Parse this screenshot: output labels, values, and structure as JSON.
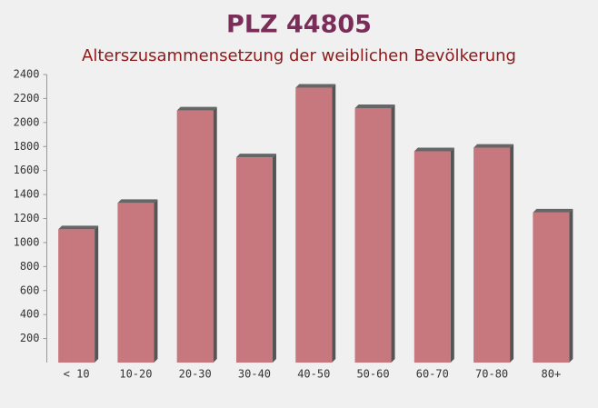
{
  "chart_data": {
    "type": "bar",
    "title": "PLZ 44805",
    "subtitle": "Alterszusammensetzung der weiblichen Bevölkerung",
    "categories": [
      "< 10",
      "10-20",
      "20-30",
      "30-40",
      "40-50",
      "50-60",
      "60-70",
      "70-80",
      "80+"
    ],
    "values": [
      1110,
      1330,
      2100,
      1710,
      2290,
      2120,
      1760,
      1790,
      1250
    ],
    "color": "#c0636b",
    "ylim": [
      0,
      2400
    ],
    "yticks": [
      200,
      400,
      600,
      800,
      1000,
      1200,
      1400,
      1600,
      1800,
      2000,
      2200,
      2400
    ],
    "grid": false
  }
}
